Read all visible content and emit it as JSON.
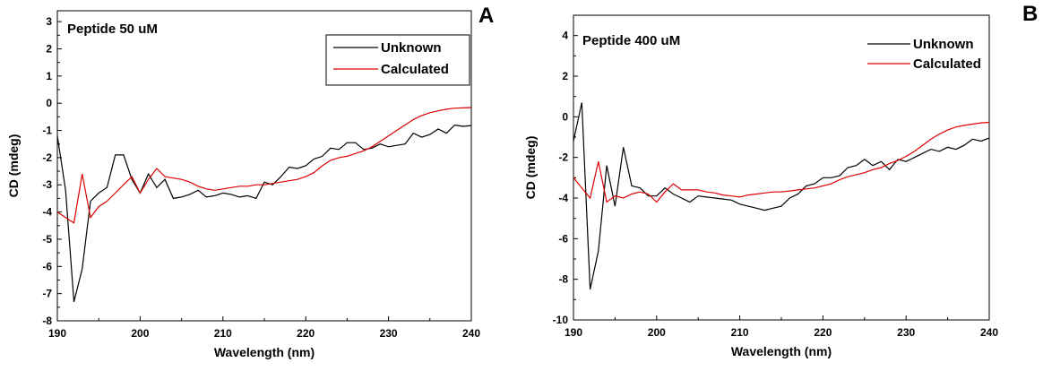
{
  "chart_data": [
    {
      "type": "line",
      "panel_label": "A",
      "title": "Peptide 50 uM",
      "xlabel": "Wavelength (nm)",
      "ylabel": "CD (mdeg)",
      "xlim": [
        190,
        240
      ],
      "ylim": [
        -8,
        3.4
      ],
      "xticks": [
        190,
        200,
        210,
        220,
        230,
        240
      ],
      "yticks": [
        -8,
        -7,
        -6,
        -5,
        -4,
        -3,
        -2,
        -1,
        0,
        1,
        2,
        3
      ],
      "legend_position": "top-right",
      "legend_boxed": true,
      "x": [
        190,
        191,
        192,
        193,
        194,
        195,
        196,
        197,
        198,
        199,
        200,
        201,
        202,
        203,
        204,
        205,
        206,
        207,
        208,
        209,
        210,
        211,
        212,
        213,
        214,
        215,
        216,
        217,
        218,
        219,
        220,
        221,
        222,
        223,
        224,
        225,
        226,
        227,
        228,
        229,
        230,
        231,
        232,
        233,
        234,
        235,
        236,
        237,
        238,
        239,
        240
      ],
      "series": [
        {
          "name": "Unknown",
          "color": "#000000",
          "values": [
            -1.2,
            -3.2,
            -7.3,
            -6.1,
            -3.6,
            -3.3,
            -3.1,
            -1.9,
            -1.9,
            -2.8,
            -3.3,
            -2.6,
            -3.1,
            -2.8,
            -3.5,
            -3.45,
            -3.35,
            -3.2,
            -3.45,
            -3.4,
            -3.3,
            -3.35,
            -3.45,
            -3.4,
            -3.5,
            -2.9,
            -3.0,
            -2.7,
            -2.35,
            -2.4,
            -2.3,
            -2.05,
            -1.95,
            -1.65,
            -1.7,
            -1.45,
            -1.45,
            -1.7,
            -1.65,
            -1.5,
            -1.6,
            -1.55,
            -1.5,
            -1.1,
            -1.25,
            -1.15,
            -0.95,
            -1.1,
            -0.8,
            -0.85,
            -0.82
          ]
        },
        {
          "name": "Calculated",
          "color": "#dd0000",
          "values": [
            -4.0,
            -4.2,
            -4.4,
            -2.6,
            -4.2,
            -3.8,
            -3.6,
            -3.3,
            -3.0,
            -2.7,
            -3.3,
            -2.8,
            -2.4,
            -2.7,
            -2.75,
            -2.8,
            -2.9,
            -3.05,
            -3.15,
            -3.2,
            -3.15,
            -3.1,
            -3.05,
            -3.05,
            -3.0,
            -3.0,
            -2.95,
            -2.9,
            -2.85,
            -2.8,
            -2.7,
            -2.55,
            -2.3,
            -2.1,
            -2.0,
            -1.95,
            -1.85,
            -1.75,
            -1.6,
            -1.4,
            -1.2,
            -1.0,
            -0.8,
            -0.6,
            -0.45,
            -0.35,
            -0.28,
            -0.22,
            -0.18,
            -0.17,
            -0.16
          ]
        }
      ]
    },
    {
      "type": "line",
      "panel_label": "B",
      "title": "Peptide 400 uM",
      "xlabel": "Wavelength (nm)",
      "ylabel": "CD (mdeg)",
      "xlim": [
        190,
        240
      ],
      "ylim": [
        -10,
        5
      ],
      "xticks": [
        190,
        200,
        210,
        220,
        230,
        240
      ],
      "yticks": [
        -10,
        -8,
        -6,
        -4,
        -2,
        0,
        2,
        4
      ],
      "legend_position": "top-right",
      "legend_boxed": false,
      "x": [
        190,
        191,
        192,
        193,
        194,
        195,
        196,
        197,
        198,
        199,
        200,
        201,
        202,
        203,
        204,
        205,
        206,
        207,
        208,
        209,
        210,
        211,
        212,
        213,
        214,
        215,
        216,
        217,
        218,
        219,
        220,
        221,
        222,
        223,
        224,
        225,
        226,
        227,
        228,
        229,
        230,
        231,
        232,
        233,
        234,
        235,
        236,
        237,
        238,
        239,
        240
      ],
      "series": [
        {
          "name": "Unknown",
          "color": "#000000",
          "values": [
            -1.2,
            0.7,
            -8.5,
            -6.6,
            -2.4,
            -4.4,
            -1.5,
            -3.4,
            -3.5,
            -3.9,
            -3.9,
            -3.5,
            -3.8,
            -4.0,
            -4.2,
            -3.9,
            -3.95,
            -4.0,
            -4.05,
            -4.1,
            -4.3,
            -4.4,
            -4.5,
            -4.6,
            -4.5,
            -4.4,
            -4.0,
            -3.8,
            -3.4,
            -3.3,
            -3.0,
            -3.0,
            -2.9,
            -2.5,
            -2.4,
            -2.1,
            -2.4,
            -2.2,
            -2.6,
            -2.1,
            -2.2,
            -2.0,
            -1.8,
            -1.6,
            -1.7,
            -1.5,
            -1.6,
            -1.4,
            -1.1,
            -1.2,
            -1.05
          ]
        },
        {
          "name": "Calculated",
          "color": "#dd0000",
          "values": [
            -3.0,
            -3.5,
            -4.0,
            -2.2,
            -4.2,
            -3.9,
            -4.0,
            -3.8,
            -3.7,
            -3.8,
            -4.2,
            -3.7,
            -3.3,
            -3.6,
            -3.6,
            -3.6,
            -3.7,
            -3.75,
            -3.85,
            -3.9,
            -3.95,
            -3.85,
            -3.8,
            -3.75,
            -3.7,
            -3.7,
            -3.65,
            -3.6,
            -3.55,
            -3.5,
            -3.4,
            -3.3,
            -3.1,
            -2.95,
            -2.85,
            -2.75,
            -2.6,
            -2.5,
            -2.3,
            -2.15,
            -1.95,
            -1.7,
            -1.4,
            -1.1,
            -0.85,
            -0.65,
            -0.5,
            -0.42,
            -0.36,
            -0.3,
            -0.27
          ]
        }
      ]
    }
  ]
}
